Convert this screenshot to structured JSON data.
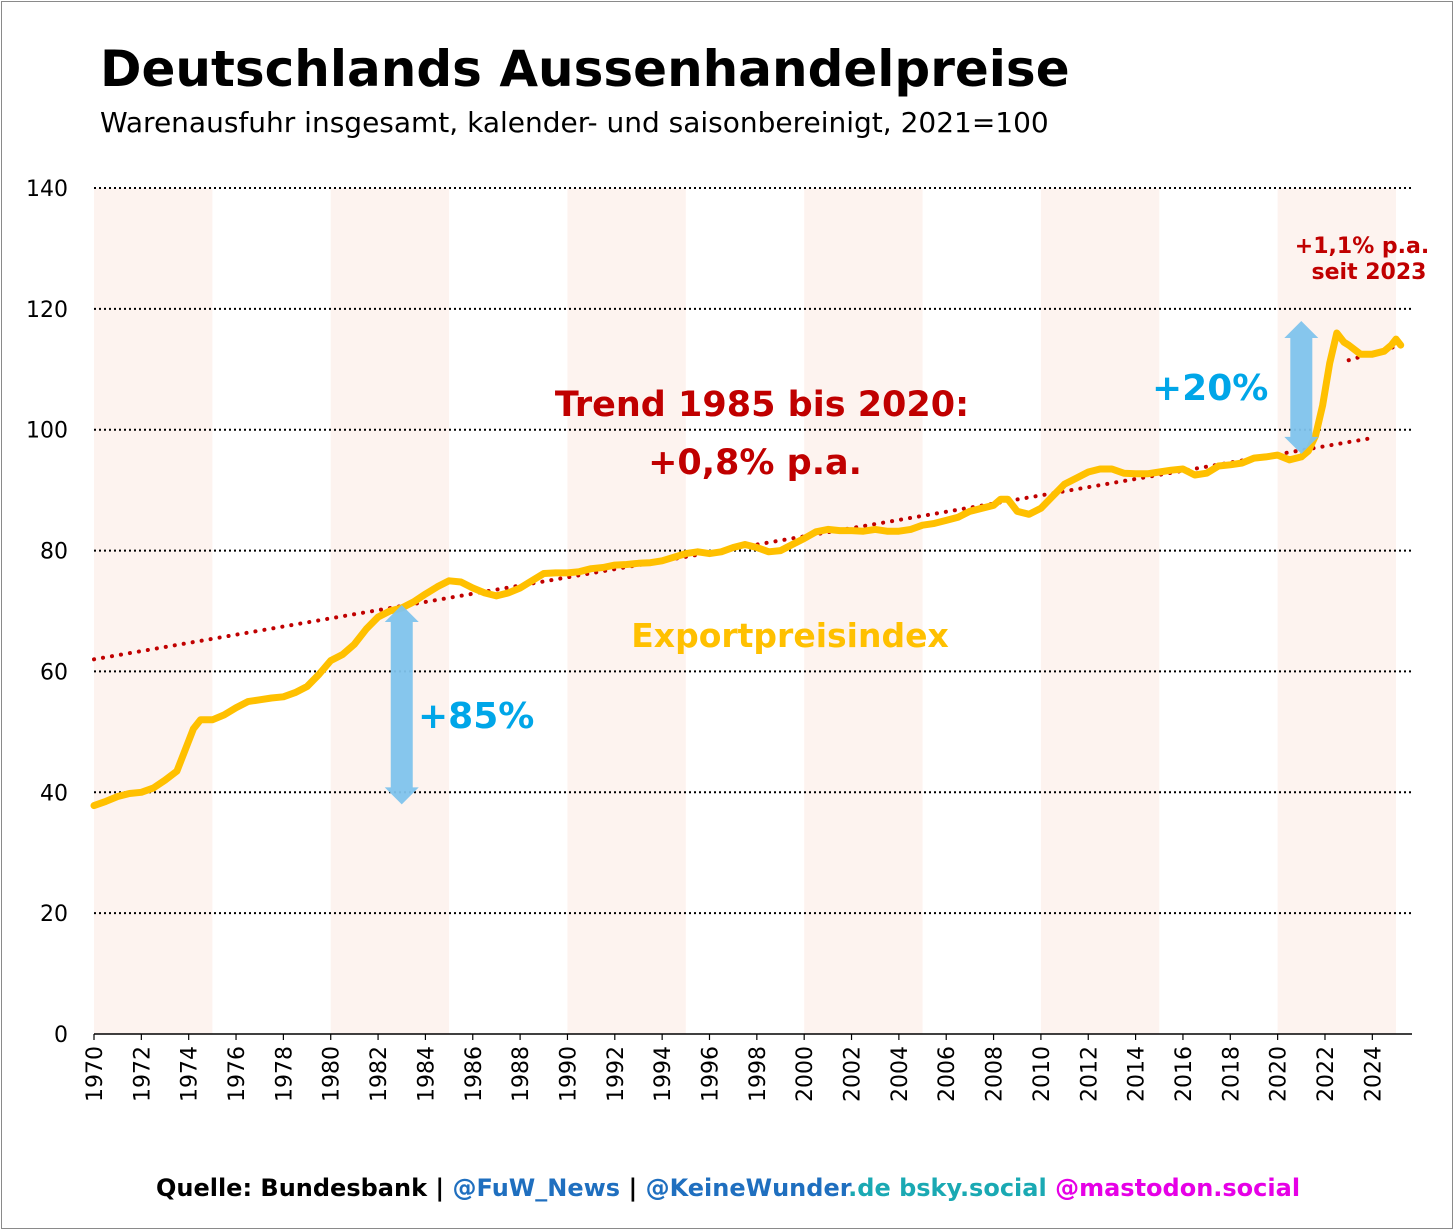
{
  "header": {
    "title": "Deutschlands Aussenhandelpreise",
    "subtitle": "Warenausfuhr insgesamt, kalender- und saisonbereinigt, 2021=100"
  },
  "footer": {
    "source": "Quelle: Bundesbank",
    "sep1": " | ",
    "fuw": "@FuW_News",
    "sep2": " | ",
    "kw": "@KeineWunder",
    "de": ".de",
    "bsky": " bsky.social",
    "mast": " @mastodon.social"
  },
  "colors": {
    "series": "#FFC000",
    "trend": "#C00000",
    "arrow": "#7FC3EC",
    "arrow_text": "#00A6E8",
    "band": "#FDF3EF",
    "footer_blue": "#1F6FBF",
    "footer_teal": "#1AA9B3",
    "footer_magenta": "#E600E6"
  },
  "chart_data": {
    "type": "line",
    "xlim": [
      1970,
      2025.5
    ],
    "ylim": [
      0,
      140
    ],
    "y_ticks": [
      0,
      20,
      40,
      60,
      80,
      100,
      120,
      140
    ],
    "x_ticks": [
      1970,
      1972,
      1974,
      1976,
      1978,
      1980,
      1982,
      1984,
      1986,
      1988,
      1990,
      1992,
      1994,
      1996,
      1998,
      2000,
      2002,
      2004,
      2006,
      2008,
      2010,
      2012,
      2014,
      2016,
      2018,
      2020,
      2022,
      2024
    ],
    "grid": "horizontal-dotted",
    "shaded_periods": [
      [
        1970,
        1975
      ],
      [
        1980,
        1985
      ],
      [
        1990,
        1995
      ],
      [
        2000,
        2005
      ],
      [
        2010,
        2015
      ],
      [
        2020,
        2025
      ]
    ],
    "series": [
      {
        "name": "Exportpreisindex",
        "x": [
          1970,
          1970.5,
          1971,
          1971.5,
          1972,
          1972.5,
          1973,
          1973.5,
          1974,
          1974.2,
          1974.5,
          1974.8,
          1975,
          1975.5,
          1976,
          1976.5,
          1977,
          1977.5,
          1978,
          1978.5,
          1979,
          1979.5,
          1980,
          1980.5,
          1981,
          1981.5,
          1982,
          1982.5,
          1983,
          1983.5,
          1984,
          1984.5,
          1985,
          1985.5,
          1986,
          1986.5,
          1987,
          1987.5,
          1988,
          1988.5,
          1989,
          1989.5,
          1990,
          1990.5,
          1991,
          1991.5,
          1992,
          1992.5,
          1993,
          1993.5,
          1994,
          1994.5,
          1995,
          1995.5,
          1996,
          1996.5,
          1997,
          1997.5,
          1998,
          1998.5,
          1999,
          1999.5,
          2000,
          2000.5,
          2001,
          2001.5,
          2002,
          2002.5,
          2003,
          2003.5,
          2004,
          2004.5,
          2005,
          2005.5,
          2006,
          2006.5,
          2007,
          2007.5,
          2008,
          2008.3,
          2008.6,
          2009,
          2009.5,
          2010,
          2010.5,
          2011,
          2011.5,
          2012,
          2012.5,
          2013,
          2013.5,
          2014,
          2014.5,
          2015,
          2015.5,
          2016,
          2016.5,
          2017,
          2017.5,
          2018,
          2018.5,
          2019,
          2019.5,
          2020,
          2020.5,
          2021,
          2021.3,
          2021.6,
          2021.9,
          2022.2,
          2022.5,
          2022.8,
          2023,
          2023.5,
          2024,
          2024.5,
          2024.8,
          2025,
          2025.2
        ],
        "y": [
          37.8,
          38.5,
          39.3,
          39.8,
          40,
          40.7,
          42,
          43.5,
          48.5,
          50.5,
          52,
          52,
          52,
          52.8,
          54,
          55,
          55.3,
          55.6,
          55.8,
          56.5,
          57.5,
          59.5,
          61.8,
          62.8,
          64.5,
          67,
          69,
          70,
          70.5,
          71.5,
          72.8,
          74,
          75,
          74.8,
          73.8,
          73,
          72.5,
          73,
          73.8,
          75,
          76.2,
          76.3,
          76.3,
          76.5,
          77,
          77.2,
          77.6,
          77.7,
          77.9,
          78,
          78.3,
          78.9,
          79.5,
          79.8,
          79.5,
          79.8,
          80.5,
          81,
          80.5,
          79.8,
          80,
          81,
          82,
          83.1,
          83.5,
          83.3,
          83.3,
          83.2,
          83.5,
          83.2,
          83.2,
          83.5,
          84.2,
          84.5,
          85,
          85.5,
          86.5,
          87,
          87.5,
          88.5,
          88.5,
          86.5,
          86,
          87,
          89,
          91,
          92,
          93,
          93.5,
          93.5,
          92.8,
          92.7,
          92.7,
          93,
          93.3,
          93.5,
          92.5,
          92.8,
          94,
          94.2,
          94.5,
          95.3,
          95.5,
          95.8,
          95,
          95.5,
          96.5,
          99,
          104,
          111,
          116,
          114.5,
          114,
          112.5,
          112.5,
          113,
          114,
          115,
          114
        ]
      },
      {
        "name": "Trend",
        "style": "dotted",
        "x": [
          1970,
          2023.8
        ],
        "y": [
          62,
          98.5
        ]
      },
      {
        "name": "Trend seit 2023",
        "style": "dotted",
        "x": [
          2023,
          2025.2
        ],
        "y": [
          111.5,
          114
        ]
      }
    ],
    "annotations": [
      {
        "text1": "Trend 1985 bis 2020:",
        "text2": "+0,8% p.a."
      },
      {
        "text": "Exportpreisindex"
      },
      {
        "text": "+85%",
        "arrow_from": [
          1983,
          38
        ],
        "arrow_to": [
          1983,
          71
        ]
      },
      {
        "text": "+20%",
        "arrow_from": [
          2021,
          96
        ],
        "arrow_to": [
          2021,
          118
        ]
      },
      {
        "text1": "+1,1% p.a.",
        "text2": "seit 2023"
      }
    ]
  }
}
